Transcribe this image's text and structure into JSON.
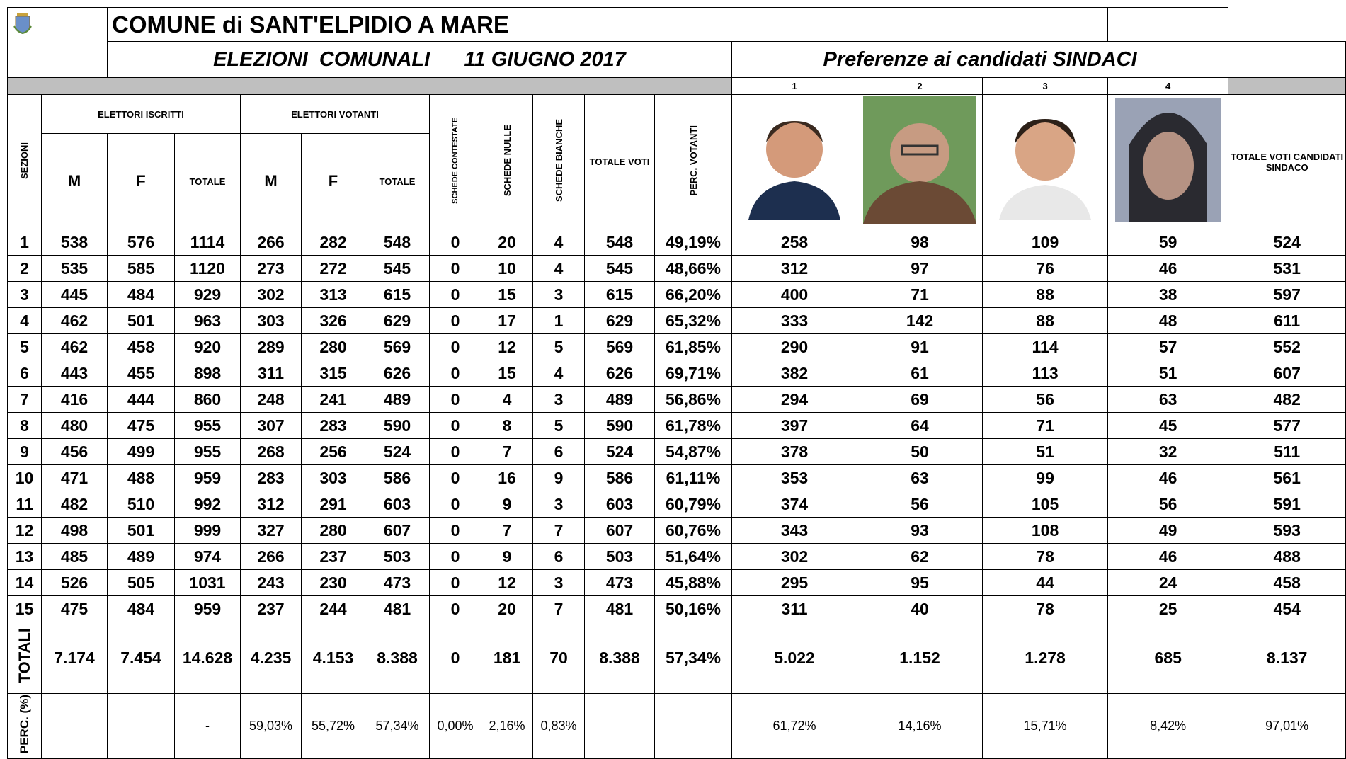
{
  "header": {
    "title": "COMUNE  di  SANT'ELPIDIO A MARE",
    "subtitle_left": "ELEZIONI  COMUNALI      11 GIUGNO 2017",
    "subtitle_right": "Preferenze ai candidati SINDACI"
  },
  "columns": {
    "sezioni": "SEZIONI",
    "elettori_iscritti": "ELETTORI ISCRITTI",
    "elettori_votanti": "ELETTORI  VOTANTI",
    "sub": [
      "M",
      "F",
      "TOTALE",
      "M",
      "F",
      "TOTALE"
    ],
    "schede_contestate": "SCHEDE CONTESTATE",
    "schede_nulle": "SCHEDE NULLE",
    "schede_bianche": "SCHEDE BIANCHE",
    "totale_voti": "TOTALE VOTI",
    "perc_votanti": "PERC. VOTANTI",
    "candidates": [
      1,
      2,
      3,
      4
    ],
    "totale_candidati": "TOTALE VOTI CANDIDATI SINDACO"
  },
  "table": {
    "rows": [
      [
        1,
        538,
        576,
        1114,
        266,
        282,
        548,
        0,
        20,
        4,
        548,
        "49,19%",
        258,
        98,
        109,
        59,
        524
      ],
      [
        2,
        535,
        585,
        1120,
        273,
        272,
        545,
        0,
        10,
        4,
        545,
        "48,66%",
        312,
        97,
        76,
        46,
        531
      ],
      [
        3,
        445,
        484,
        929,
        302,
        313,
        615,
        0,
        15,
        3,
        615,
        "66,20%",
        400,
        71,
        88,
        38,
        597
      ],
      [
        4,
        462,
        501,
        963,
        303,
        326,
        629,
        0,
        17,
        1,
        629,
        "65,32%",
        333,
        142,
        88,
        48,
        611
      ],
      [
        5,
        462,
        458,
        920,
        289,
        280,
        569,
        0,
        12,
        5,
        569,
        "61,85%",
        290,
        91,
        114,
        57,
        552
      ],
      [
        6,
        443,
        455,
        898,
        311,
        315,
        626,
        0,
        15,
        4,
        626,
        "69,71%",
        382,
        61,
        113,
        51,
        607
      ],
      [
        7,
        416,
        444,
        860,
        248,
        241,
        489,
        0,
        4,
        3,
        489,
        "56,86%",
        294,
        69,
        56,
        63,
        482
      ],
      [
        8,
        480,
        475,
        955,
        307,
        283,
        590,
        0,
        8,
        5,
        590,
        "61,78%",
        397,
        64,
        71,
        45,
        577
      ],
      [
        9,
        456,
        499,
        955,
        268,
        256,
        524,
        0,
        7,
        6,
        524,
        "54,87%",
        378,
        50,
        51,
        32,
        511
      ],
      [
        10,
        471,
        488,
        959,
        283,
        303,
        586,
        0,
        16,
        9,
        586,
        "61,11%",
        353,
        63,
        99,
        46,
        561
      ],
      [
        11,
        482,
        510,
        992,
        312,
        291,
        603,
        0,
        9,
        3,
        603,
        "60,79%",
        374,
        56,
        105,
        56,
        591
      ],
      [
        12,
        498,
        501,
        999,
        327,
        280,
        607,
        0,
        7,
        7,
        607,
        "60,76%",
        343,
        93,
        108,
        49,
        593
      ],
      [
        13,
        485,
        489,
        974,
        266,
        237,
        503,
        0,
        9,
        6,
        503,
        "51,64%",
        302,
        62,
        78,
        46,
        488
      ],
      [
        14,
        526,
        505,
        1031,
        243,
        230,
        473,
        0,
        12,
        3,
        473,
        "45,88%",
        295,
        95,
        44,
        24,
        458
      ],
      [
        15,
        475,
        484,
        959,
        237,
        244,
        481,
        0,
        20,
        7,
        481,
        "50,16%",
        311,
        40,
        78,
        25,
        454
      ]
    ],
    "totali": {
      "label": "TOTALI",
      "values": [
        "7.174",
        "7.454",
        "14.628",
        "4.235",
        "4.153",
        "8.388",
        0,
        181,
        70,
        "8.388",
        "57,34%",
        "5.022",
        "1.152",
        "1.278",
        685,
        "8.137"
      ]
    },
    "perc": {
      "label": "PERC. (%)",
      "values": [
        null,
        null,
        "-",
        "59,03%",
        "55,72%",
        "57,34%",
        "0,00%",
        "2,16%",
        "0,83%",
        null,
        null,
        "61,72%",
        "14,16%",
        "15,71%",
        "8,42%",
        "97,01%"
      ]
    }
  }
}
